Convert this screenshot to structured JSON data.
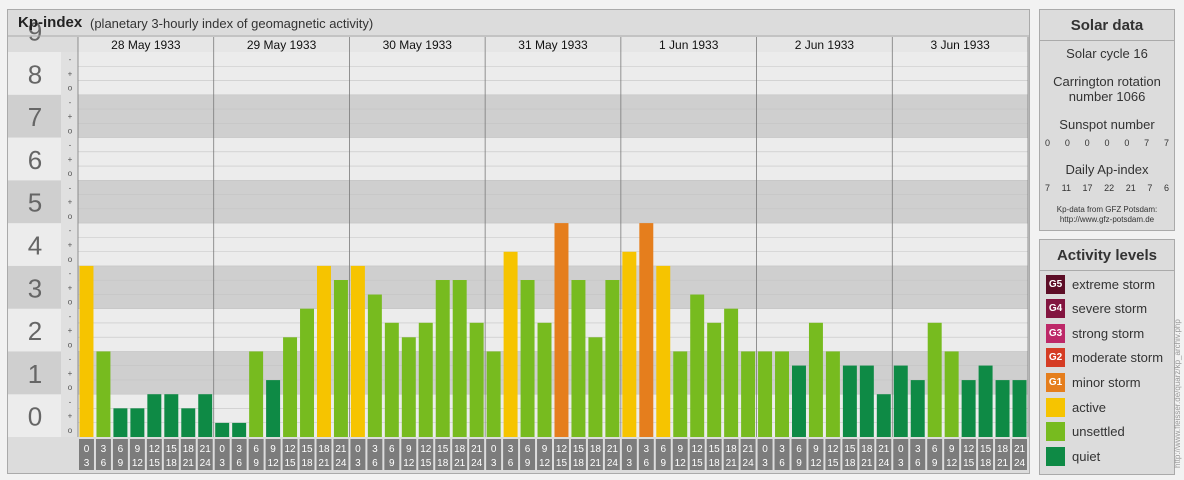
{
  "header": {
    "title": "Kp-index",
    "subtitle": "(planetary 3-hourly index of geomagnetic activity)"
  },
  "colors": {
    "quiet": "#0e8a45",
    "unsettled": "#77bb1f",
    "active": "#f6c400",
    "minor": "#e57e1d",
    "moderate": "#d53c24",
    "strong": "#bd2868",
    "severe": "#82143f",
    "extreme": "#5c0d26"
  },
  "chart_data": {
    "type": "bar",
    "ylabel_ticks": [
      "0",
      "1",
      "2",
      "3",
      "4",
      "5",
      "6",
      "7",
      "8",
      "9"
    ],
    "ylim": [
      0,
      9
    ],
    "minor_ticks": [
      "o",
      "+",
      "-"
    ],
    "dates": [
      "28 May 1933",
      "29 May 1933",
      "30 May 1933",
      "31 May 1933",
      "1 Jun 1933",
      "2 Jun 1933",
      "3 Jun 1933"
    ],
    "interval_labels": [
      [
        "0",
        "3"
      ],
      [
        "3",
        "6"
      ],
      [
        "6",
        "9"
      ],
      [
        "9",
        "12"
      ],
      [
        "12",
        "15"
      ],
      [
        "15",
        "18"
      ],
      [
        "18",
        "21"
      ],
      [
        "21",
        "24"
      ]
    ],
    "values": [
      [
        4.0,
        2.0,
        0.67,
        0.67,
        1.0,
        1.0,
        0.67,
        1.0
      ],
      [
        0.33,
        0.33,
        2.0,
        1.33,
        2.33,
        3.0,
        4.0,
        3.67
      ],
      [
        4.0,
        3.33,
        2.67,
        2.33,
        2.67,
        3.67,
        3.67,
        2.67
      ],
      [
        2.0,
        4.33,
        3.67,
        2.67,
        5.0,
        3.67,
        2.33,
        3.67
      ],
      [
        4.33,
        5.0,
        4.0,
        2.0,
        3.33,
        2.67,
        3.0,
        2.0
      ],
      [
        2.0,
        2.0,
        1.67,
        2.67,
        2.0,
        1.67,
        1.67,
        1.0
      ],
      [
        1.67,
        1.33,
        2.67,
        2.0,
        1.33,
        1.67,
        1.33,
        1.33
      ]
    ]
  },
  "solar": {
    "title": "Solar data",
    "cycle": "Solar cycle 16",
    "carrington_1": "Carrington rotation",
    "carrington_2": "number 1066",
    "sunspot_label": "Sunspot number",
    "sunspot_values": [
      "0",
      "0",
      "0",
      "0",
      "0",
      "7",
      "7"
    ],
    "ap_label": "Daily Ap-index",
    "ap_values": [
      "7",
      "11",
      "17",
      "22",
      "21",
      "7",
      "6"
    ],
    "source_1": "Kp-data from GFZ Potsdam:",
    "source_2": "http://www.gfz-potsdam.de"
  },
  "levels": {
    "title": "Activity levels",
    "items": [
      {
        "code": "G5",
        "label": "extreme storm",
        "color": "#5c0d26"
      },
      {
        "code": "G4",
        "label": "severe storm",
        "color": "#82143f"
      },
      {
        "code": "G3",
        "label": "strong storm",
        "color": "#bd2868"
      },
      {
        "code": "G2",
        "label": "moderate storm",
        "color": "#d53c24"
      },
      {
        "code": "G1",
        "label": "minor storm",
        "color": "#e57e1d"
      },
      {
        "code": "",
        "label": "active",
        "color": "#f6c400"
      },
      {
        "code": "",
        "label": "unsettled",
        "color": "#77bb1f"
      },
      {
        "code": "",
        "label": "quiet",
        "color": "#0e8a45"
      }
    ]
  },
  "watermark": "http://www.fleisser.de/quarz/kp_archiv.php"
}
